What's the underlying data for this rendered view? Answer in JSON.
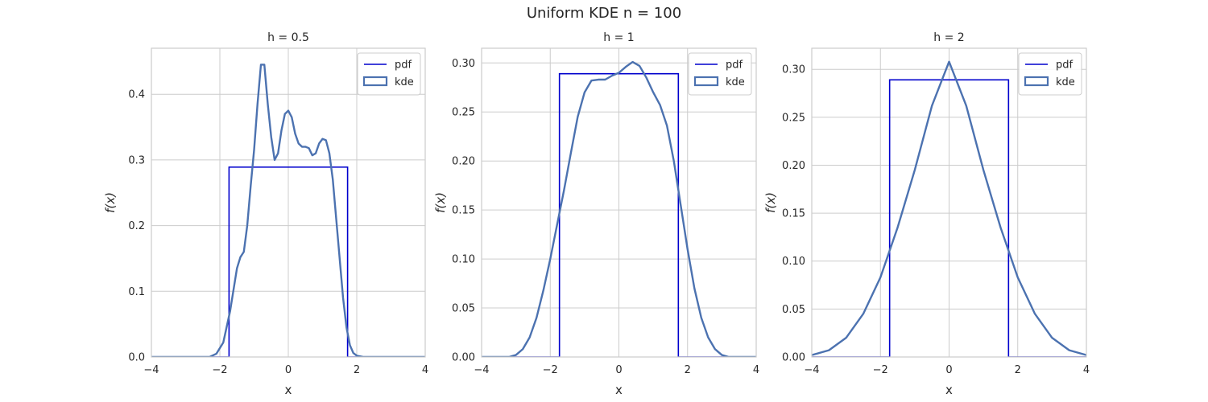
{
  "figure": {
    "title": "Uniform KDE n = 100"
  },
  "colors": {
    "pdf": "#0000cd",
    "kde": "#4c72b0",
    "grid": "#cccccc",
    "frame": "#cccccc",
    "legend_border": "#cccccc"
  },
  "chart_data": [
    {
      "type": "line",
      "title": "h = 0.5",
      "xlabel": "x",
      "ylabel": "f(x)",
      "xlim": [
        -4,
        4
      ],
      "ylim": [
        0,
        0.47
      ],
      "xticks": [
        -4,
        -2,
        0,
        2,
        4
      ],
      "xtick_labels": [
        "−4",
        "−2",
        "0",
        "2",
        "4"
      ],
      "yticks": [
        0,
        0.1,
        0.2,
        0.3,
        0.4
      ],
      "ytick_labels": [
        "0.0",
        "0.1",
        "0.2",
        "0.3",
        "0.4"
      ],
      "grid": true,
      "legend": {
        "position": "top-right",
        "entries": [
          "pdf",
          "kde"
        ]
      },
      "series": [
        {
          "name": "pdf",
          "style": "line",
          "x": [
            -4,
            -1.732,
            -1.732,
            1.732,
            1.732,
            4
          ],
          "y": [
            0,
            0,
            0.289,
            0.289,
            0,
            0
          ]
        },
        {
          "name": "kde",
          "style": "filled-outline",
          "x": [
            -4,
            -2.3,
            -2.1,
            -1.9,
            -1.7,
            -1.5,
            -1.4,
            -1.3,
            -1.2,
            -1.1,
            -1.0,
            -0.9,
            -0.8,
            -0.7,
            -0.6,
            -0.5,
            -0.4,
            -0.3,
            -0.2,
            -0.1,
            0.0,
            0.1,
            0.2,
            0.3,
            0.4,
            0.5,
            0.6,
            0.7,
            0.8,
            0.9,
            1.0,
            1.1,
            1.2,
            1.3,
            1.4,
            1.5,
            1.6,
            1.7,
            1.8,
            1.9,
            2.0,
            2.2,
            4
          ],
          "y": [
            0,
            0,
            0.005,
            0.022,
            0.07,
            0.135,
            0.152,
            0.16,
            0.2,
            0.26,
            0.315,
            0.385,
            0.445,
            0.445,
            0.385,
            0.335,
            0.3,
            0.31,
            0.345,
            0.37,
            0.375,
            0.365,
            0.34,
            0.325,
            0.32,
            0.32,
            0.318,
            0.307,
            0.31,
            0.325,
            0.332,
            0.33,
            0.31,
            0.27,
            0.21,
            0.15,
            0.09,
            0.045,
            0.018,
            0.006,
            0.002,
            0,
            0
          ]
        }
      ]
    },
    {
      "type": "line",
      "title": "h = 1",
      "xlabel": "x",
      "ylabel": "f(x)",
      "xlim": [
        -4,
        4
      ],
      "ylim": [
        0,
        0.315
      ],
      "xticks": [
        -4,
        -2,
        0,
        2,
        4
      ],
      "xtick_labels": [
        "−4",
        "−2",
        "0",
        "2",
        "4"
      ],
      "yticks": [
        0,
        0.05,
        0.1,
        0.15,
        0.2,
        0.25,
        0.3
      ],
      "ytick_labels": [
        "0.00",
        "0.05",
        "0.10",
        "0.15",
        "0.20",
        "0.25",
        "0.30"
      ],
      "grid": true,
      "legend": {
        "position": "top-right",
        "entries": [
          "pdf",
          "kde"
        ]
      },
      "series": [
        {
          "name": "pdf",
          "style": "line",
          "x": [
            -4,
            -1.732,
            -1.732,
            1.732,
            1.732,
            4
          ],
          "y": [
            0,
            0,
            0.289,
            0.289,
            0,
            0
          ]
        },
        {
          "name": "kde",
          "style": "filled-outline",
          "x": [
            -4,
            -3.2,
            -3.0,
            -2.8,
            -2.6,
            -2.4,
            -2.2,
            -2.0,
            -1.8,
            -1.6,
            -1.4,
            -1.2,
            -1.0,
            -0.8,
            -0.6,
            -0.4,
            -0.2,
            0.0,
            0.2,
            0.4,
            0.6,
            0.8,
            1.0,
            1.2,
            1.4,
            1.6,
            1.8,
            2.0,
            2.2,
            2.4,
            2.6,
            2.8,
            3.0,
            3.2,
            4
          ],
          "y": [
            0,
            0,
            0.002,
            0.008,
            0.02,
            0.04,
            0.068,
            0.1,
            0.135,
            0.17,
            0.208,
            0.245,
            0.27,
            0.282,
            0.283,
            0.283,
            0.287,
            0.29,
            0.296,
            0.301,
            0.297,
            0.285,
            0.27,
            0.257,
            0.236,
            0.2,
            0.155,
            0.11,
            0.07,
            0.04,
            0.02,
            0.008,
            0.002,
            0,
            0
          ]
        }
      ]
    },
    {
      "type": "line",
      "title": "h = 2",
      "xlabel": "x",
      "ylabel": "f(x)",
      "xlim": [
        -4,
        4
      ],
      "ylim": [
        0,
        0.322
      ],
      "xticks": [
        -4,
        -2,
        0,
        2,
        4
      ],
      "xtick_labels": [
        "−4",
        "−2",
        "0",
        "2",
        "4"
      ],
      "yticks": [
        0,
        0.05,
        0.1,
        0.15,
        0.2,
        0.25,
        0.3
      ],
      "ytick_labels": [
        "0.00",
        "0.05",
        "0.10",
        "0.15",
        "0.20",
        "0.25",
        "0.30"
      ],
      "grid": true,
      "legend": {
        "position": "top-right",
        "entries": [
          "pdf",
          "kde"
        ]
      },
      "series": [
        {
          "name": "pdf",
          "style": "line",
          "x": [
            -4,
            -1.732,
            -1.732,
            1.732,
            1.732,
            4
          ],
          "y": [
            0,
            0,
            0.289,
            0.289,
            0,
            0
          ]
        },
        {
          "name": "kde",
          "style": "filled-outline",
          "x": [
            -4.0,
            -3.5,
            -3.0,
            -2.5,
            -2.0,
            -1.5,
            -1.0,
            -0.5,
            0.0,
            0.5,
            1.0,
            1.5,
            2.0,
            2.5,
            3.0,
            3.5,
            4.0
          ],
          "y": [
            0.002,
            0.007,
            0.02,
            0.045,
            0.083,
            0.135,
            0.195,
            0.262,
            0.308,
            0.262,
            0.195,
            0.135,
            0.083,
            0.045,
            0.02,
            0.007,
            0.002
          ]
        }
      ]
    }
  ]
}
